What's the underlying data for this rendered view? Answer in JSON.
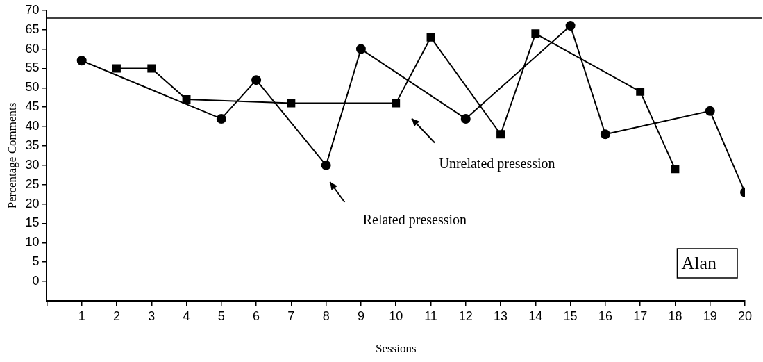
{
  "chart_data": {
    "type": "line",
    "xlabel": "Sessions",
    "ylabel": "Percentage Comments",
    "x": [
      1,
      2,
      3,
      4,
      5,
      6,
      7,
      8,
      9,
      10,
      11,
      12,
      13,
      14,
      15,
      16,
      17,
      18,
      19,
      20
    ],
    "series": [
      {
        "color": "#000000",
        "marker": "circle",
        "values": [
          57,
          null,
          null,
          null,
          42,
          52,
          null,
          30,
          60,
          null,
          null,
          42,
          null,
          null,
          66,
          38,
          null,
          null,
          44,
          23
        ]
      },
      {
        "color": "#000000",
        "marker": "square",
        "values": [
          null,
          55,
          55,
          47,
          null,
          null,
          46,
          null,
          null,
          46,
          63,
          null,
          38,
          64,
          null,
          null,
          49,
          29,
          null,
          null
        ]
      }
    ],
    "xlim": [
      0,
      20
    ],
    "xticks": [
      {
        "value": 0,
        "label": null
      },
      1,
      2,
      3,
      4,
      5,
      6,
      7,
      8,
      9,
      10,
      11,
      12,
      13,
      14,
      15,
      16,
      17,
      18,
      19,
      20
    ],
    "ylim": [
      -5,
      70
    ],
    "yticks": [
      0,
      5,
      10,
      15,
      20,
      25,
      30,
      35,
      40,
      45,
      50,
      55,
      60,
      65,
      70
    ],
    "grid": false,
    "legend": false,
    "line_style": "solid",
    "ref_lines": [
      {
        "axis": "y",
        "value": 68,
        "label": null,
        "color": "#000000"
      }
    ],
    "annotations": [
      "Related presession",
      "Unrelated presession",
      "Alan"
    ]
  }
}
